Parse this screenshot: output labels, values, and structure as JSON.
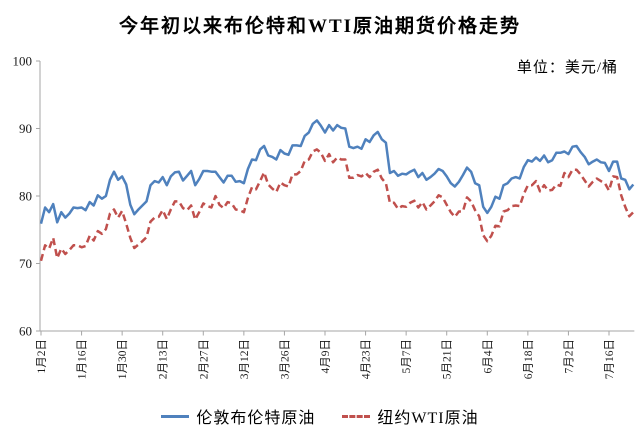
{
  "title": "今年初以来布伦特和WTI原油期货价格走势",
  "unit_label": "单位：美元/桶",
  "colors": {
    "axis": "#a6a6a6",
    "text": "#1a1a1a",
    "brent_blue": "#4f81bd",
    "wti_red": "#c0504d"
  },
  "legend": {
    "position": "bottom"
  },
  "chart_data": {
    "type": "line",
    "title": "今年初以来布伦特和WTI原油期货价格走势",
    "unit": "美元/桶",
    "xlabel": "",
    "ylabel": "",
    "ylim": [
      60,
      100
    ],
    "y_ticks": [
      60,
      70,
      80,
      90,
      100
    ],
    "grid": false,
    "legend_position": "bottom",
    "x_tick_labels": [
      "1月2日",
      "1月16日",
      "1月30日",
      "2月13日",
      "2月27日",
      "3月12日",
      "3月26日",
      "4月9日",
      "4月23日",
      "5月7日",
      "5月21日",
      "6月4日",
      "6月18日",
      "7月2日",
      "7月16日"
    ],
    "x_ticks_every_n_points": 10,
    "series": [
      {
        "name": "伦敦布伦特原油",
        "color": "#4f81bd",
        "line_style": "solid",
        "values": [
          75.9,
          78.3,
          77.6,
          78.8,
          76.1,
          77.6,
          76.8,
          77.4,
          78.3,
          78.2,
          78.3,
          77.9,
          79.1,
          78.6,
          80.1,
          79.6,
          80.0,
          82.4,
          83.6,
          82.4,
          82.9,
          81.7,
          78.7,
          77.3,
          78.0,
          78.6,
          79.2,
          81.6,
          82.2,
          82.0,
          82.8,
          81.6,
          82.9,
          83.5,
          83.6,
          82.3,
          83.0,
          83.7,
          81.6,
          82.5,
          83.7,
          83.7,
          83.6,
          83.6,
          82.8,
          82.0,
          83.0,
          83.0,
          82.1,
          82.2,
          81.9,
          84.0,
          85.4,
          85.3,
          86.9,
          87.4,
          86.0,
          85.8,
          85.4,
          86.8,
          86.3,
          86.1,
          87.5,
          87.5,
          87.4,
          88.9,
          89.4,
          90.7,
          91.2,
          90.4,
          89.4,
          90.5,
          89.7,
          90.5,
          90.1,
          90.0,
          87.3,
          87.1,
          87.3,
          87.0,
          88.4,
          88.0,
          89.0,
          89.5,
          88.4,
          87.9,
          83.4,
          83.7,
          83.0,
          83.3,
          83.2,
          83.6,
          83.9,
          82.8,
          83.4,
          82.4,
          82.8,
          83.3,
          84.0,
          83.7,
          82.9,
          81.9,
          81.4,
          82.1,
          83.1,
          84.2,
          83.6,
          81.9,
          81.6,
          78.4,
          77.5,
          78.4,
          79.9,
          79.6,
          81.6,
          81.9,
          82.6,
          82.8,
          82.6,
          84.3,
          85.3,
          85.1,
          85.7,
          85.2,
          86.0,
          85.0,
          85.3,
          86.4,
          86.4,
          86.6,
          86.2,
          87.3,
          87.4,
          86.5,
          85.8,
          84.7,
          85.1,
          85.4,
          85.0,
          84.9,
          83.7,
          85.1,
          85.1,
          82.6,
          82.4,
          81.0,
          81.7
        ]
      },
      {
        "name": "纽约WTI原油",
        "color": "#c0504d",
        "line_style": "dashed",
        "values": [
          70.4,
          72.7,
          72.2,
          73.8,
          70.8,
          72.2,
          71.4,
          72.0,
          72.7,
          72.7,
          72.4,
          72.6,
          74.1,
          73.4,
          74.8,
          74.4,
          75.1,
          77.4,
          78.0,
          76.8,
          77.8,
          75.9,
          73.8,
          72.3,
          72.8,
          73.3,
          73.9,
          76.2,
          76.8,
          76.9,
          77.9,
          76.6,
          78.0,
          79.2,
          79.2,
          78.2,
          77.9,
          78.6,
          76.5,
          77.6,
          78.9,
          78.5,
          78.3,
          80.0,
          78.7,
          78.2,
          79.1,
          78.9,
          78.0,
          77.9,
          77.6,
          79.7,
          81.3,
          81.0,
          82.2,
          83.5,
          81.7,
          81.1,
          80.6,
          82.0,
          81.6,
          81.4,
          83.2,
          83.2,
          83.7,
          85.2,
          85.4,
          86.6,
          86.9,
          86.4,
          85.2,
          86.2,
          85.0,
          85.7,
          85.4,
          85.4,
          82.7,
          82.7,
          83.1,
          82.9,
          83.4,
          82.8,
          83.6,
          83.9,
          82.6,
          81.9,
          79.0,
          79.0,
          78.1,
          78.5,
          78.4,
          79.0,
          79.3,
          78.3,
          79.1,
          78.0,
          78.6,
          79.2,
          80.1,
          79.8,
          78.7,
          77.6,
          76.9,
          77.7,
          77.7,
          79.8,
          79.2,
          77.9,
          77.0,
          74.2,
          73.3,
          74.1,
          75.6,
          75.5,
          77.7,
          77.9,
          78.5,
          78.6,
          78.5,
          80.3,
          81.6,
          81.6,
          82.2,
          80.7,
          81.6,
          80.8,
          80.9,
          81.7,
          81.5,
          83.4,
          82.8,
          83.9,
          83.9,
          83.2,
          82.3,
          81.4,
          82.1,
          82.6,
          82.2,
          81.9,
          80.8,
          82.9,
          82.8,
          80.1,
          78.4,
          77.0,
          77.6
        ]
      }
    ]
  }
}
